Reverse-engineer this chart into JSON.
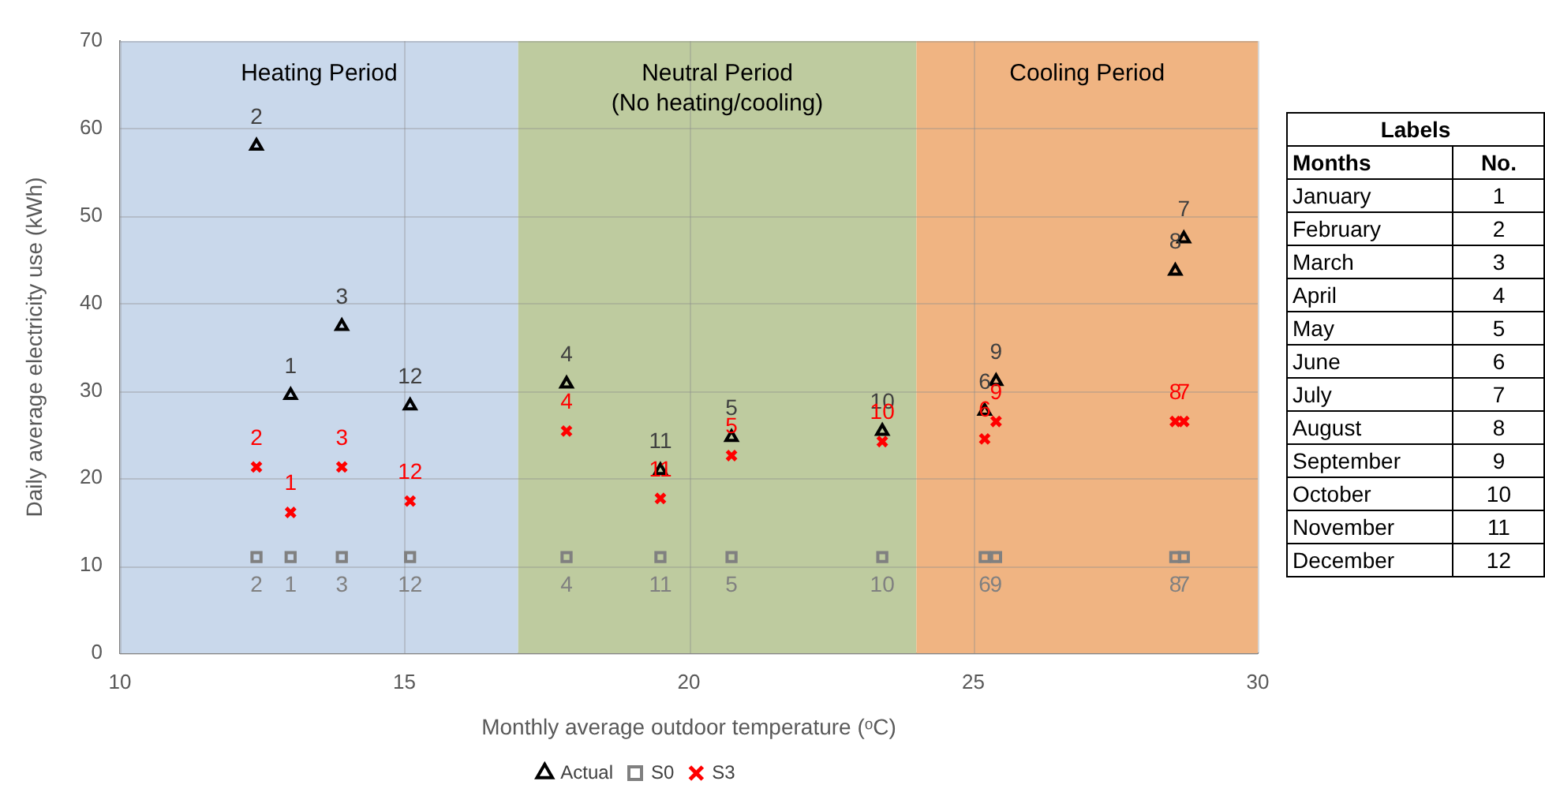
{
  "chart_data": {
    "type": "scatter",
    "xlabel": "Monthly average outdoor temperature (ᵒC)",
    "ylabel": "Daily average electricity use (kWh)",
    "x": [
      12.4,
      13.0,
      13.9,
      15.1,
      17.85,
      19.5,
      20.75,
      23.4,
      25.2,
      25.4,
      28.55,
      28.7
    ],
    "series": [
      {
        "name": "Actual",
        "color": "#000000",
        "marker": "triangle",
        "values": [
          58.0,
          29.5,
          37.4,
          28.3,
          30.8,
          20.9,
          24.7,
          25.4,
          27.7,
          31.1,
          43.7,
          47.4
        ]
      },
      {
        "name": "S0",
        "color": "#808080",
        "marker": "square",
        "values": [
          11,
          11,
          11,
          11,
          11,
          11,
          11,
          11,
          11,
          11,
          11,
          11
        ]
      },
      {
        "name": "S3",
        "color": "#ff0000",
        "marker": "cross",
        "values": [
          21.3,
          16.1,
          21.3,
          17.4,
          25.4,
          17.7,
          22.6,
          24.2,
          24.5,
          26.5,
          26.5,
          26.5
        ]
      }
    ],
    "xlim": [
      10,
      30
    ],
    "xticks": [
      10,
      15,
      20,
      25,
      30
    ],
    "ylim": [
      0,
      70
    ],
    "yticks": [
      0,
      10,
      20,
      30,
      40,
      50,
      60,
      70
    ],
    "grid": true,
    "legend": "bottom",
    "bands": [
      {
        "axis": "x",
        "from": 10,
        "to": 17,
        "label": "Heating Period",
        "color": "#c9d8eb"
      },
      {
        "axis": "x",
        "from": 17,
        "to": 24,
        "label": "Neutral Period\n(No heating/cooling)",
        "color": "#becb9f"
      },
      {
        "axis": "x",
        "from": 24,
        "to": 30,
        "label": "Cooling Period",
        "color": "#f0b482"
      }
    ],
    "annotations": [
      "Labels",
      "Months",
      "No.",
      "January",
      "1",
      "February",
      "2",
      "March",
      "3",
      "April",
      "4",
      "May",
      "5",
      "June",
      "6",
      "July",
      "7",
      "August",
      "8",
      "September",
      "9",
      "October",
      "10",
      "November",
      "11",
      "December",
      "12",
      {
        "text": "2",
        "x": 12.4,
        "y": 58.0
      },
      {
        "text": "1",
        "x": 13.0,
        "y": 29.5
      },
      {
        "text": "3",
        "x": 13.9,
        "y": 37.4
      },
      {
        "text": "12",
        "x": 15.1,
        "y": 28.3
      },
      {
        "text": "4",
        "x": 17.85,
        "y": 30.8
      },
      {
        "text": "11",
        "x": 19.5,
        "y": 20.9
      },
      {
        "text": "5",
        "x": 20.75,
        "y": 24.7
      },
      {
        "text": "10",
        "x": 23.4,
        "y": 25.4
      },
      {
        "text": "6",
        "x": 25.2,
        "y": 27.7
      },
      {
        "text": "9",
        "x": 25.4,
        "y": 31.1
      },
      {
        "text": "8",
        "x": 28.55,
        "y": 43.7
      },
      {
        "text": "7",
        "x": 28.7,
        "y": 47.4
      },
      {
        "text": "2",
        "x": 12.4,
        "y": 11
      },
      {
        "text": "1",
        "x": 13.0,
        "y": 11
      },
      {
        "text": "3",
        "x": 13.9,
        "y": 11
      },
      {
        "text": "12",
        "x": 15.1,
        "y": 11
      },
      {
        "text": "4",
        "x": 17.85,
        "y": 11
      },
      {
        "text": "11",
        "x": 19.5,
        "y": 11
      },
      {
        "text": "5",
        "x": 20.75,
        "y": 11
      },
      {
        "text": "10",
        "x": 23.4,
        "y": 11
      },
      {
        "text": "6",
        "x": 25.2,
        "y": 11
      },
      {
        "text": "9",
        "x": 25.4,
        "y": 11
      },
      {
        "text": "8",
        "x": 28.55,
        "y": 11
      },
      {
        "text": "7",
        "x": 28.7,
        "y": 11
      },
      {
        "text": "2",
        "x": 12.4,
        "y": 21.3
      },
      {
        "text": "1",
        "x": 13.0,
        "y": 16.1
      },
      {
        "text": "3",
        "x": 13.9,
        "y": 21.3
      },
      {
        "text": "12",
        "x": 15.1,
        "y": 17.4
      },
      {
        "text": "4",
        "x": 17.85,
        "y": 25.4
      },
      {
        "text": "11",
        "x": 19.5,
        "y": 17.7
      },
      {
        "text": "5",
        "x": 20.75,
        "y": 22.6
      },
      {
        "text": "10",
        "x": 23.4,
        "y": 24.2
      },
      {
        "text": "6",
        "x": 25.2,
        "y": 24.5
      },
      {
        "text": "9",
        "x": 25.4,
        "y": 26.5
      },
      {
        "text": "8",
        "x": 28.55,
        "y": 26.5
      },
      {
        "text": "7",
        "x": 28.7,
        "y": 26.5
      }
    ]
  }
}
